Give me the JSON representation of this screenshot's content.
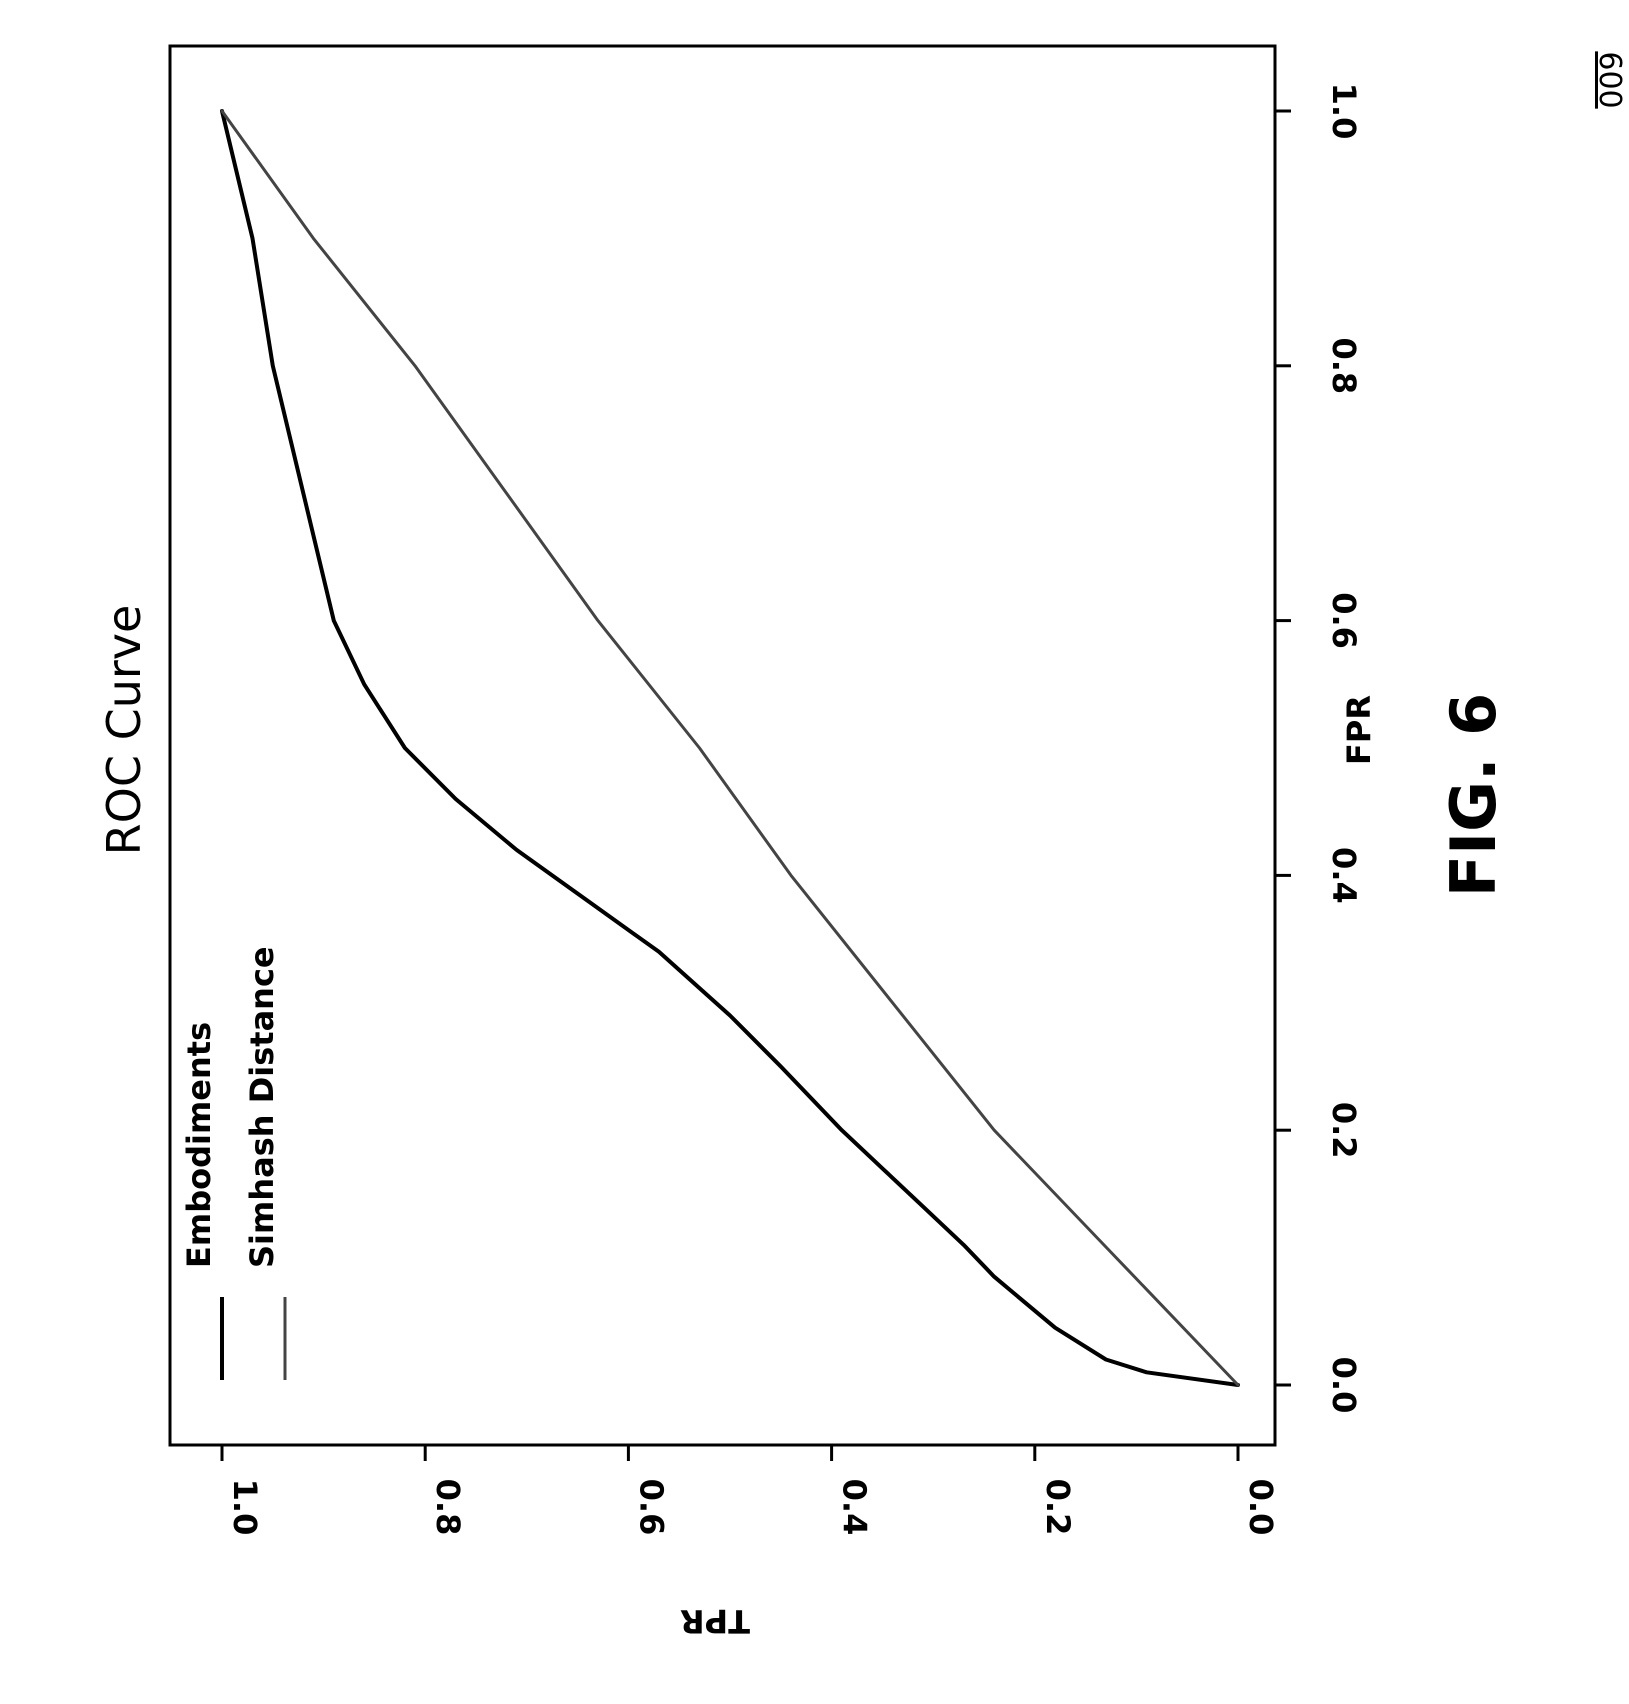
{
  "figure": {
    "reference_number": "600",
    "label": "FIG. 6"
  },
  "chart_data": {
    "type": "line",
    "title": "ROC Curve",
    "xlabel": "FPR",
    "ylabel": "TPR",
    "xlim": [
      0.0,
      1.0
    ],
    "ylim": [
      0.0,
      1.0
    ],
    "x_ticks": [
      "0.0",
      "0.2",
      "0.4",
      "0.6",
      "0.8",
      "1.0"
    ],
    "y_ticks": [
      "0.0",
      "0.2",
      "0.4",
      "0.6",
      "0.8",
      "1.0"
    ],
    "grid": false,
    "legend_position": "top-left",
    "orientation": "rotated 90° clockwise on page",
    "series": [
      {
        "name": "Embodiments",
        "color": "#000000",
        "points": [
          [
            0.0,
            0.0
          ],
          [
            0.01,
            0.09
          ],
          [
            0.02,
            0.13
          ],
          [
            0.045,
            0.18
          ],
          [
            0.065,
            0.21
          ],
          [
            0.085,
            0.24
          ],
          [
            0.11,
            0.27
          ],
          [
            0.14,
            0.31
          ],
          [
            0.17,
            0.35
          ],
          [
            0.2,
            0.39
          ],
          [
            0.25,
            0.45
          ],
          [
            0.29,
            0.5
          ],
          [
            0.34,
            0.57
          ],
          [
            0.38,
            0.64
          ],
          [
            0.42,
            0.71
          ],
          [
            0.46,
            0.77
          ],
          [
            0.5,
            0.82
          ],
          [
            0.55,
            0.86
          ],
          [
            0.6,
            0.89
          ],
          [
            0.7,
            0.92
          ],
          [
            0.8,
            0.95
          ],
          [
            0.9,
            0.97
          ],
          [
            1.0,
            1.0
          ]
        ]
      },
      {
        "name": "Simhash Distance",
        "color": "#444444",
        "points": [
          [
            0.0,
            0.0
          ],
          [
            0.1,
            0.12
          ],
          [
            0.2,
            0.24
          ],
          [
            0.3,
            0.34
          ],
          [
            0.4,
            0.44
          ],
          [
            0.5,
            0.53
          ],
          [
            0.6,
            0.63
          ],
          [
            0.7,
            0.72
          ],
          [
            0.8,
            0.81
          ],
          [
            0.9,
            0.91
          ],
          [
            1.0,
            1.0
          ]
        ]
      }
    ]
  }
}
